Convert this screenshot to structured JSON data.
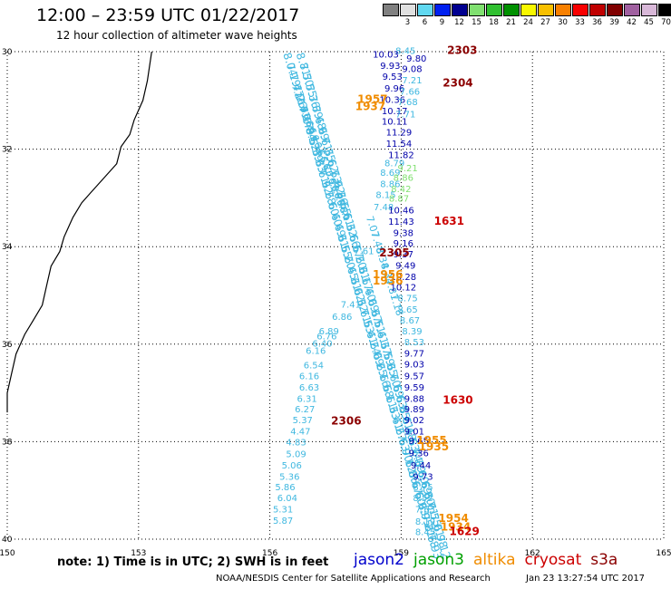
{
  "title": "12:00 – 23:59 UTC 01/22/2017",
  "subtitle": "12 hour collection of altimeter wave heights",
  "scale": {
    "unit": "(ft)",
    "bins": [
      {
        "label": "",
        "color": "#808080"
      },
      {
        "label": "3",
        "color": "#e0e0e0"
      },
      {
        "label": "6",
        "color": "#60d8f0"
      },
      {
        "label": "9",
        "color": "#0020f0"
      },
      {
        "label": "12",
        "color": "#000090"
      },
      {
        "label": "15",
        "color": "#80e070"
      },
      {
        "label": "18",
        "color": "#30c030"
      },
      {
        "label": "21",
        "color": "#009000"
      },
      {
        "label": "24",
        "color": "#f8f800"
      },
      {
        "label": "27",
        "color": "#f8c000"
      },
      {
        "label": "30",
        "color": "#f88000"
      },
      {
        "label": "33",
        "color": "#f80000"
      },
      {
        "label": "36",
        "color": "#c00000"
      },
      {
        "label": "39",
        "color": "#800000"
      },
      {
        "label": "42",
        "color": "#a060a0"
      },
      {
        "label": "45",
        "color": "#d8b8d8"
      },
      {
        "label": "70",
        "color": "#000000"
      }
    ]
  },
  "note": "note:  1) Time is in UTC;  2) SWH is in feet",
  "satellites": [
    {
      "name": "jason2",
      "color": "#0000cc"
    },
    {
      "name": "jason3",
      "color": "#00a000"
    },
    {
      "name": "altika",
      "color": "#f08c00"
    },
    {
      "name": "cryosat",
      "color": "#cc0000"
    },
    {
      "name": "s3a",
      "color": "#8b0000"
    }
  ],
  "credit": "NOAA/NESDIS Center for Satellite Applications and Research",
  "stamp": "Jan 23 13:27:54 UTC 2017",
  "chart_data": {
    "type": "scatter",
    "xlim": [
      150,
      165
    ],
    "ylim": [
      -40,
      -30
    ],
    "x_ticks": [
      "150",
      "153",
      "156",
      "159",
      "162",
      "165"
    ],
    "y_ticks": [
      "-30",
      "-32",
      "-34",
      "-36",
      "-38",
      "-40"
    ],
    "y_tick_labels": [
      "30",
      "32",
      "34",
      "36",
      "38",
      "40"
    ],
    "grid": true,
    "coast": [
      [
        153.3,
        -30.0
      ],
      [
        153.2,
        -30.6
      ],
      [
        153.1,
        -31.0
      ],
      [
        152.9,
        -31.4
      ],
      [
        152.8,
        -31.7
      ],
      [
        152.6,
        -31.95
      ],
      [
        152.5,
        -32.3
      ],
      [
        152.2,
        -32.6
      ],
      [
        151.9,
        -32.9
      ],
      [
        151.7,
        -33.1
      ],
      [
        151.5,
        -33.4
      ],
      [
        151.3,
        -33.8
      ],
      [
        151.2,
        -34.1
      ],
      [
        151.0,
        -34.4
      ],
      [
        150.9,
        -34.8
      ],
      [
        150.8,
        -35.2
      ],
      [
        150.6,
        -35.5
      ],
      [
        150.4,
        -35.8
      ],
      [
        150.2,
        -36.2
      ],
      [
        150.1,
        -36.6
      ],
      [
        150.0,
        -37.0
      ],
      [
        150.0,
        -37.4
      ]
    ],
    "tracks": [
      {
        "color": "#40b8e0",
        "size": 12,
        "x0": 156.3,
        "x1": 159.6,
        "y0": -30.05,
        "y1": -39.95,
        "n": 46,
        "labels": [
          "8.04",
          "7.19",
          "7.47",
          "7.26",
          "7.71",
          "7.17",
          "6.84",
          "6.52",
          "6.39",
          "6.33",
          "6.71",
          "6.92",
          "6.28",
          "6.60",
          "6.40",
          "6.49",
          "6.31",
          "6.55",
          "6.20",
          "6.45",
          "6.31",
          "6.02",
          "6.32",
          "6.71",
          "6.53",
          "6.41",
          "6.24",
          "6.09",
          "6.25",
          "6.16",
          "6.58",
          "6.11",
          "6.33",
          "6.41",
          "6.27",
          "6.63",
          "6.90",
          "7.12",
          "6.86",
          "6.67",
          "6.60",
          "6.93",
          "6.95",
          "7.21",
          "6.78",
          "6.93"
        ]
      },
      {
        "color": "#40b8e0",
        "size": 12,
        "x0": 156.6,
        "x1": 159.8,
        "y0": -30.05,
        "y1": -39.95,
        "n": 46,
        "labels": [
          "8.81",
          "7.50",
          "7.55",
          "7.36",
          "7.89",
          "7.48",
          "6.99",
          "6.71",
          "6.35",
          "6.62",
          "6.73",
          "6.92",
          "6.36",
          "6.55",
          "6.61",
          "6.32",
          "6.66",
          "6.57",
          "6.20",
          "6.31",
          "6.17",
          "6.40",
          "6.09",
          "6.37",
          "6.51",
          "6.41",
          "6.37",
          "6.59",
          "6.35",
          "6.70",
          "6.69",
          "6.63",
          "6.35",
          "6.61",
          "6.48",
          "6.53",
          "6.74",
          "6.39",
          "6.60",
          "6.69",
          "6.80",
          "6.71",
          "6.55",
          "7.01",
          "6.98",
          "7.12"
        ]
      },
      {
        "color": "#40b8e0",
        "size": 10,
        "x0": 156.5,
        "x1": 157.6,
        "y0": -30.7,
        "y1": -33.2,
        "n": 18,
        "labels": [
          "7.2",
          "7.1",
          "6.9",
          "6.7",
          "6.6",
          "6.5",
          "6.4",
          "6.3",
          "6.6",
          "6.5",
          "6.8",
          "6.7",
          "6.9",
          "6.8",
          "6.6",
          "6.5",
          "6.3",
          "6.1"
        ]
      },
      {
        "color": "#40b8e0",
        "size": 11,
        "x0": 158.2,
        "x1": 158.75,
        "y0": -33.4,
        "y1": -35.0,
        "n": 6,
        "labels": [
          "7.07",
          "7.48",
          "8.34",
          "8.34",
          "7.81",
          "7.18"
        ]
      }
    ],
    "points": [
      {
        "x": 159.1,
        "y": -30.05,
        "label": "8.45",
        "color": "#40b8e0"
      },
      {
        "x": 159.35,
        "y": -30.2,
        "label": "9.80",
        "color": "#0000aa"
      },
      {
        "x": 158.65,
        "y": -30.12,
        "label": "10.03",
        "color": "#0000aa"
      },
      {
        "x": 158.75,
        "y": -30.35,
        "label": "9.93",
        "color": "#0000aa"
      },
      {
        "x": 159.25,
        "y": -30.42,
        "label": "9.08",
        "color": "#0000aa"
      },
      {
        "x": 158.8,
        "y": -30.58,
        "label": "9.53",
        "color": "#0000aa"
      },
      {
        "x": 159.25,
        "y": -30.65,
        "label": "7.21",
        "color": "#40b8e0"
      },
      {
        "x": 158.85,
        "y": -30.82,
        "label": "9.96",
        "color": "#0000aa"
      },
      {
        "x": 159.2,
        "y": -30.88,
        "label": "7.66",
        "color": "#40b8e0"
      },
      {
        "x": 158.8,
        "y": -31.05,
        "label": "10.36",
        "color": "#0000aa"
      },
      {
        "x": 159.15,
        "y": -31.1,
        "label": "7.68",
        "color": "#40b8e0"
      },
      {
        "x": 158.85,
        "y": -31.28,
        "label": "10.17",
        "color": "#0000aa"
      },
      {
        "x": 159.1,
        "y": -31.35,
        "label": "7.71",
        "color": "#40b8e0"
      },
      {
        "x": 158.85,
        "y": -31.5,
        "label": "10.11",
        "color": "#0000aa"
      },
      {
        "x": 158.95,
        "y": -31.72,
        "label": "11.29",
        "color": "#0000aa"
      },
      {
        "x": 158.95,
        "y": -31.95,
        "label": "11.54",
        "color": "#0000aa"
      },
      {
        "x": 159.0,
        "y": -32.18,
        "label": "11.82",
        "color": "#0000aa"
      },
      {
        "x": 158.85,
        "y": -32.35,
        "label": "8.79",
        "color": "#40b8e0"
      },
      {
        "x": 159.15,
        "y": -32.45,
        "label": "9.21",
        "color": "#80e070"
      },
      {
        "x": 158.75,
        "y": -32.55,
        "label": "8.69",
        "color": "#40b8e0"
      },
      {
        "x": 159.05,
        "y": -32.65,
        "label": "8.86",
        "color": "#80e070"
      },
      {
        "x": 158.75,
        "y": -32.78,
        "label": "8.86",
        "color": "#40b8e0"
      },
      {
        "x": 159.0,
        "y": -32.88,
        "label": "8.42",
        "color": "#80e070"
      },
      {
        "x": 158.65,
        "y": -33.0,
        "label": "8.15",
        "color": "#40b8e0"
      },
      {
        "x": 158.95,
        "y": -33.08,
        "label": "8.87",
        "color": "#80e070"
      },
      {
        "x": 158.6,
        "y": -33.25,
        "label": "7.48",
        "color": "#40b8e0"
      },
      {
        "x": 159.0,
        "y": -33.32,
        "label": "10.46",
        "color": "#0000aa"
      },
      {
        "x": 159.0,
        "y": -33.55,
        "label": "11.43",
        "color": "#0000aa"
      },
      {
        "x": 159.05,
        "y": -33.78,
        "label": "9.38",
        "color": "#0000aa"
      },
      {
        "x": 159.05,
        "y": -34.0,
        "label": "9.16",
        "color": "#0000aa"
      },
      {
        "x": 158.15,
        "y": -34.15,
        "label": "7.61",
        "color": "#40b8e0"
      },
      {
        "x": 159.05,
        "y": -34.22,
        "label": "9.37",
        "color": "#0000aa"
      },
      {
        "x": 159.1,
        "y": -34.45,
        "label": "9.49",
        "color": "#0000aa"
      },
      {
        "x": 159.05,
        "y": -34.68,
        "label": "10.28",
        "color": "#0000aa"
      },
      {
        "x": 159.05,
        "y": -34.9,
        "label": "10.12",
        "color": "#0000aa"
      },
      {
        "x": 159.15,
        "y": -35.12,
        "label": "8.75",
        "color": "#40b8e0"
      },
      {
        "x": 159.15,
        "y": -35.35,
        "label": "8.65",
        "color": "#40b8e0"
      },
      {
        "x": 159.2,
        "y": -35.58,
        "label": "8.67",
        "color": "#40b8e0"
      },
      {
        "x": 159.25,
        "y": -35.8,
        "label": "8.39",
        "color": "#40b8e0"
      },
      {
        "x": 159.3,
        "y": -36.02,
        "label": "8.53",
        "color": "#40b8e0"
      },
      {
        "x": 159.3,
        "y": -36.25,
        "label": "9.77",
        "color": "#0000aa"
      },
      {
        "x": 159.3,
        "y": -36.48,
        "label": "9.03",
        "color": "#0000aa"
      },
      {
        "x": 159.3,
        "y": -36.72,
        "label": "9.57",
        "color": "#0000aa"
      },
      {
        "x": 159.3,
        "y": -36.95,
        "label": "9.59",
        "color": "#0000aa"
      },
      {
        "x": 159.3,
        "y": -37.18,
        "label": "9.88",
        "color": "#0000aa"
      },
      {
        "x": 159.3,
        "y": -37.4,
        "label": "9.89",
        "color": "#0000aa"
      },
      {
        "x": 159.3,
        "y": -37.62,
        "label": "9.02",
        "color": "#0000aa"
      },
      {
        "x": 159.3,
        "y": -37.85,
        "label": "9.01",
        "color": "#0000aa"
      },
      {
        "x": 159.4,
        "y": -38.05,
        "label": "9.65",
        "color": "#0000aa"
      },
      {
        "x": 159.4,
        "y": -38.3,
        "label": "9.36",
        "color": "#0000aa"
      },
      {
        "x": 159.45,
        "y": -38.55,
        "label": "9.44",
        "color": "#0000aa"
      },
      {
        "x": 159.5,
        "y": -38.78,
        "label": "9.73",
        "color": "#0000aa"
      },
      {
        "x": 159.5,
        "y": -39.0,
        "label": "8.75",
        "color": "#40b8e0"
      },
      {
        "x": 159.5,
        "y": -39.22,
        "label": "8.52",
        "color": "#40b8e0"
      },
      {
        "x": 159.55,
        "y": -39.45,
        "label": "7.63",
        "color": "#40b8e0"
      },
      {
        "x": 159.55,
        "y": -39.7,
        "label": "8.19",
        "color": "#40b8e0"
      },
      {
        "x": 159.55,
        "y": -39.92,
        "label": "8.45",
        "color": "#40b8e0"
      },
      {
        "x": 157.85,
        "y": -35.25,
        "label": "7.41",
        "color": "#40b8e0"
      },
      {
        "x": 157.65,
        "y": -35.5,
        "label": "6.86",
        "color": "#40b8e0"
      },
      {
        "x": 157.35,
        "y": -35.8,
        "label": "6.89",
        "color": "#40b8e0"
      },
      {
        "x": 157.3,
        "y": -35.9,
        "label": "6.76",
        "color": "#40b8e0"
      },
      {
        "x": 157.2,
        "y": -36.05,
        "label": "6.40",
        "color": "#40b8e0"
      },
      {
        "x": 157.05,
        "y": -36.2,
        "label": "6.16",
        "color": "#40b8e0"
      },
      {
        "x": 157.0,
        "y": -36.5,
        "label": "6.54",
        "color": "#40b8e0"
      },
      {
        "x": 156.9,
        "y": -36.72,
        "label": "6.16",
        "color": "#40b8e0"
      },
      {
        "x": 156.9,
        "y": -36.95,
        "label": "6.63",
        "color": "#40b8e0"
      },
      {
        "x": 156.85,
        "y": -37.18,
        "label": "6.31",
        "color": "#40b8e0"
      },
      {
        "x": 156.8,
        "y": -37.4,
        "label": "6.27",
        "color": "#40b8e0"
      },
      {
        "x": 156.75,
        "y": -37.62,
        "label": "5.37",
        "color": "#40b8e0"
      },
      {
        "x": 156.7,
        "y": -37.85,
        "label": "4.47",
        "color": "#40b8e0"
      },
      {
        "x": 156.6,
        "y": -38.08,
        "label": "4.83",
        "color": "#40b8e0"
      },
      {
        "x": 156.6,
        "y": -38.32,
        "label": "5.09",
        "color": "#40b8e0"
      },
      {
        "x": 156.5,
        "y": -38.55,
        "label": "5.06",
        "color": "#40b8e0"
      },
      {
        "x": 156.45,
        "y": -38.78,
        "label": "5.36",
        "color": "#40b8e0"
      },
      {
        "x": 156.35,
        "y": -39.0,
        "label": "5.86",
        "color": "#40b8e0"
      },
      {
        "x": 156.4,
        "y": -39.22,
        "label": "6.04",
        "color": "#40b8e0"
      },
      {
        "x": 156.3,
        "y": -39.45,
        "label": "5.31",
        "color": "#40b8e0"
      },
      {
        "x": 156.3,
        "y": -39.68,
        "label": "5.87",
        "color": "#40b8e0"
      }
    ],
    "time_labels": [
      {
        "x": 160.05,
        "y": -30.05,
        "label": "2303",
        "color": "#8b0000"
      },
      {
        "x": 159.95,
        "y": -30.72,
        "label": "2304",
        "color": "#8b0000"
      },
      {
        "x": 158.0,
        "y": -31.05,
        "label": "1957",
        "color": "#f08c00"
      },
      {
        "x": 157.95,
        "y": -31.2,
        "label": "1937",
        "color": "#f08c00"
      },
      {
        "x": 159.75,
        "y": -33.55,
        "label": "1631",
        "color": "#cc0000"
      },
      {
        "x": 158.5,
        "y": -34.2,
        "label": "2305",
        "color": "#8b0000"
      },
      {
        "x": 158.35,
        "y": -34.65,
        "label": "1956",
        "color": "#f08c00"
      },
      {
        "x": 158.35,
        "y": -34.78,
        "label": "1936",
        "color": "#f08c00"
      },
      {
        "x": 159.95,
        "y": -37.22,
        "label": "1630",
        "color": "#cc0000"
      },
      {
        "x": 157.4,
        "y": -37.65,
        "label": "2306",
        "color": "#8b0000"
      },
      {
        "x": 159.35,
        "y": -38.05,
        "label": "1955",
        "color": "#f08c00"
      },
      {
        "x": 159.4,
        "y": -38.18,
        "label": "1935",
        "color": "#f08c00"
      },
      {
        "x": 159.85,
        "y": -39.65,
        "label": "1954",
        "color": "#f08c00"
      },
      {
        "x": 159.9,
        "y": -39.82,
        "label": "1934",
        "color": "#f08c00"
      },
      {
        "x": 160.1,
        "y": -39.92,
        "label": "1629",
        "color": "#cc0000"
      }
    ]
  }
}
